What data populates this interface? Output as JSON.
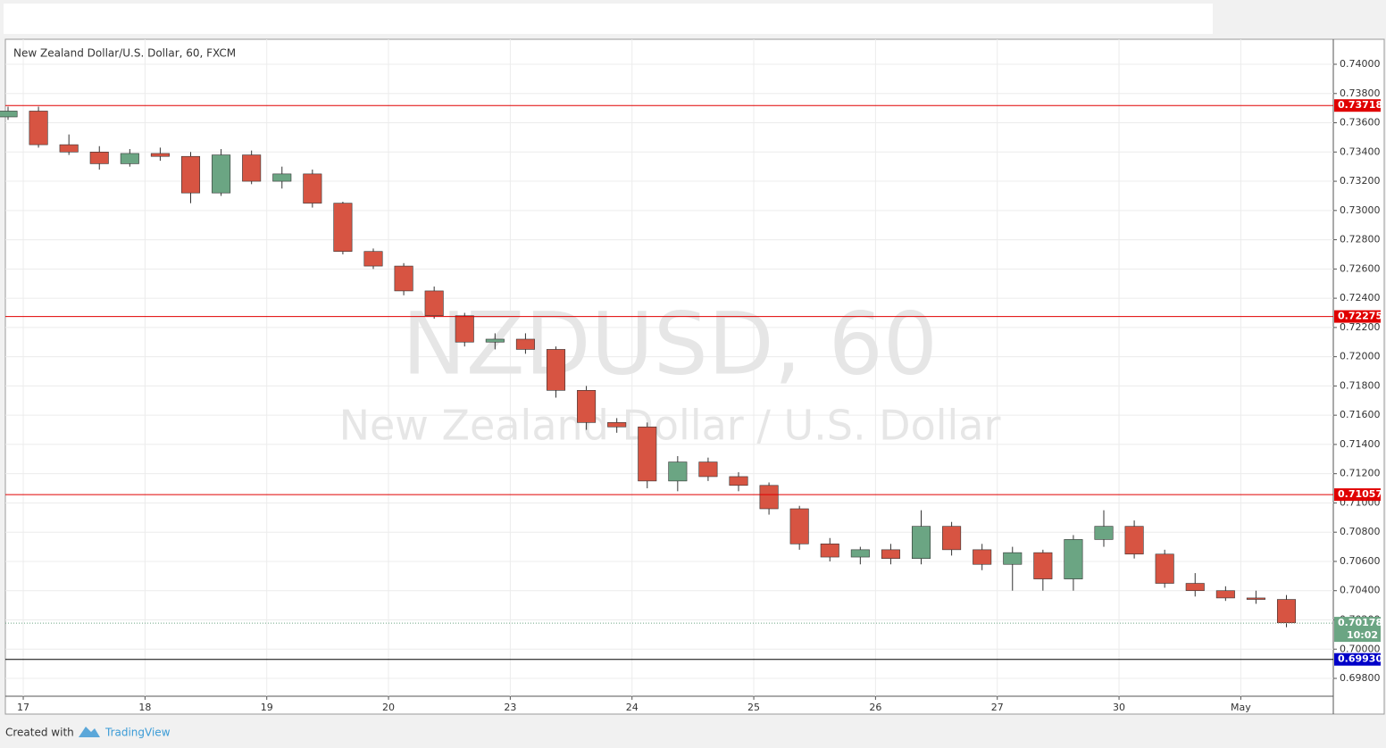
{
  "chart_data": {
    "type": "candlestick",
    "title": "New Zealand Dollar/U.S. Dollar, 60, FXCM",
    "watermark": "NZDUSD, 60",
    "watermark_subtitle": "New Zealand Dollar / U.S. Dollar",
    "xlim": [
      -0.147,
      10.76
    ],
    "xticks": [
      {
        "value": 0,
        "label": "17"
      },
      {
        "value": 1,
        "label": "18"
      },
      {
        "value": 2,
        "label": "19"
      },
      {
        "value": 3,
        "label": "20"
      },
      {
        "value": 4,
        "label": "23"
      },
      {
        "value": 5,
        "label": "24"
      },
      {
        "value": 6,
        "label": "25"
      },
      {
        "value": 7,
        "label": "26"
      },
      {
        "value": 8,
        "label": "27"
      },
      {
        "value": 9,
        "label": "30"
      },
      {
        "value": 10,
        "label": "May"
      }
    ],
    "ylim": [
      0.69678,
      0.74171
    ],
    "yticks": [
      {
        "value": 0.698,
        "label": "0.69800"
      },
      {
        "value": 0.7,
        "label": "0.70000"
      },
      {
        "value": 0.702,
        "label": "0.70200"
      },
      {
        "value": 0.704,
        "label": "0.70400"
      },
      {
        "value": 0.706,
        "label": "0.70600"
      },
      {
        "value": 0.708,
        "label": "0.70800"
      },
      {
        "value": 0.71,
        "label": "0.71000"
      },
      {
        "value": 0.712,
        "label": "0.71200"
      },
      {
        "value": 0.714,
        "label": "0.71400"
      },
      {
        "value": 0.716,
        "label": "0.71600"
      },
      {
        "value": 0.718,
        "label": "0.71800"
      },
      {
        "value": 0.72,
        "label": "0.72000"
      },
      {
        "value": 0.722,
        "label": "0.72200"
      },
      {
        "value": 0.724,
        "label": "0.72400"
      },
      {
        "value": 0.726,
        "label": "0.72600"
      },
      {
        "value": 0.728,
        "label": "0.72800"
      },
      {
        "value": 0.73,
        "label": "0.73000"
      },
      {
        "value": 0.732,
        "label": "0.73200"
      },
      {
        "value": 0.734,
        "label": "0.73400"
      },
      {
        "value": 0.736,
        "label": "0.73600"
      },
      {
        "value": 0.738,
        "label": "0.73800"
      },
      {
        "value": 0.74,
        "label": "0.74000"
      }
    ],
    "grid": true,
    "up_color": "#6ba583",
    "down_color": "#d75442",
    "x": [
      -0.125,
      0.125,
      0.375,
      0.625,
      0.875,
      1.125,
      1.375,
      1.625,
      1.875,
      2.125,
      2.375,
      2.625,
      2.875,
      3.125,
      3.375,
      3.625,
      3.875,
      4.125,
      4.375,
      4.625,
      4.875,
      5.125,
      5.375,
      5.625,
      5.875,
      6.125,
      6.375,
      6.625,
      6.875,
      7.125,
      7.375,
      7.625,
      7.875,
      8.125,
      8.375,
      8.625,
      8.875,
      9.125,
      9.375,
      9.625,
      9.875,
      10.125,
      10.375
    ],
    "open": [
      0.7364,
      0.7368,
      0.7345,
      0.734,
      0.7332,
      0.7339,
      0.7337,
      0.7312,
      0.7338,
      0.732,
      0.7325,
      0.7305,
      0.7272,
      0.7262,
      0.7245,
      0.7228,
      0.721,
      0.7212,
      0.7205,
      0.7177,
      0.7155,
      0.7152,
      0.7115,
      0.7128,
      0.7118,
      0.7112,
      0.7096,
      0.7072,
      0.7063,
      0.7068,
      0.7062,
      0.7084,
      0.7068,
      0.7058,
      0.7066,
      0.7048,
      0.7075,
      0.7084,
      0.7065,
      0.7045,
      0.704,
      0.7035,
      0.7034
    ],
    "high": [
      0.7371,
      0.7371,
      0.7352,
      0.7344,
      0.7342,
      0.7343,
      0.734,
      0.7342,
      0.7341,
      0.733,
      0.7328,
      0.7306,
      0.7274,
      0.7264,
      0.7248,
      0.723,
      0.7216,
      0.7216,
      0.7207,
      0.718,
      0.7158,
      0.7155,
      0.7132,
      0.7131,
      0.7121,
      0.7114,
      0.7098,
      0.7076,
      0.707,
      0.7072,
      0.7095,
      0.7087,
      0.7072,
      0.707,
      0.7068,
      0.7078,
      0.7095,
      0.7088,
      0.7068,
      0.7052,
      0.7043,
      0.704,
      0.7037
    ],
    "low": [
      0.7362,
      0.7343,
      0.7338,
      0.7328,
      0.733,
      0.7334,
      0.7305,
      0.731,
      0.7318,
      0.7315,
      0.7302,
      0.727,
      0.726,
      0.7242,
      0.7226,
      0.7207,
      0.7205,
      0.7202,
      0.7172,
      0.715,
      0.7148,
      0.711,
      0.7108,
      0.7115,
      0.7108,
      0.7092,
      0.7068,
      0.706,
      0.7058,
      0.7058,
      0.7058,
      0.7064,
      0.7054,
      0.704,
      0.704,
      0.704,
      0.707,
      0.7062,
      0.7042,
      0.7036,
      0.7033,
      0.7031,
      0.7015
    ],
    "close": [
      0.7368,
      0.7345,
      0.734,
      0.7332,
      0.7339,
      0.7337,
      0.7312,
      0.7338,
      0.732,
      0.7325,
      0.7305,
      0.7272,
      0.7262,
      0.7245,
      0.7228,
      0.721,
      0.7212,
      0.7205,
      0.7177,
      0.7155,
      0.7152,
      0.7115,
      0.7128,
      0.7118,
      0.7112,
      0.7096,
      0.7072,
      0.7063,
      0.7068,
      0.7062,
      0.7084,
      0.7068,
      0.7058,
      0.7066,
      0.7048,
      0.7075,
      0.7084,
      0.7065,
      0.7045,
      0.704,
      0.7035,
      0.7034,
      0.7018
    ],
    "levels": [
      {
        "value": 0.73718,
        "color": "#e00000",
        "label_color": "#e00000"
      },
      {
        "value": 0.72275,
        "color": "#e00000",
        "label_color": "#e00000"
      },
      {
        "value": 0.71057,
        "color": "#e00000",
        "label_color": "#e00000"
      },
      {
        "value": 0.6993,
        "label": "0.69930",
        "color": "#000000",
        "label_color": "#0000c8"
      }
    ],
    "last_price": 0.70178,
    "countdown": "10:02",
    "footer": {
      "created_with": "Created with",
      "brand": "TradingView"
    }
  }
}
